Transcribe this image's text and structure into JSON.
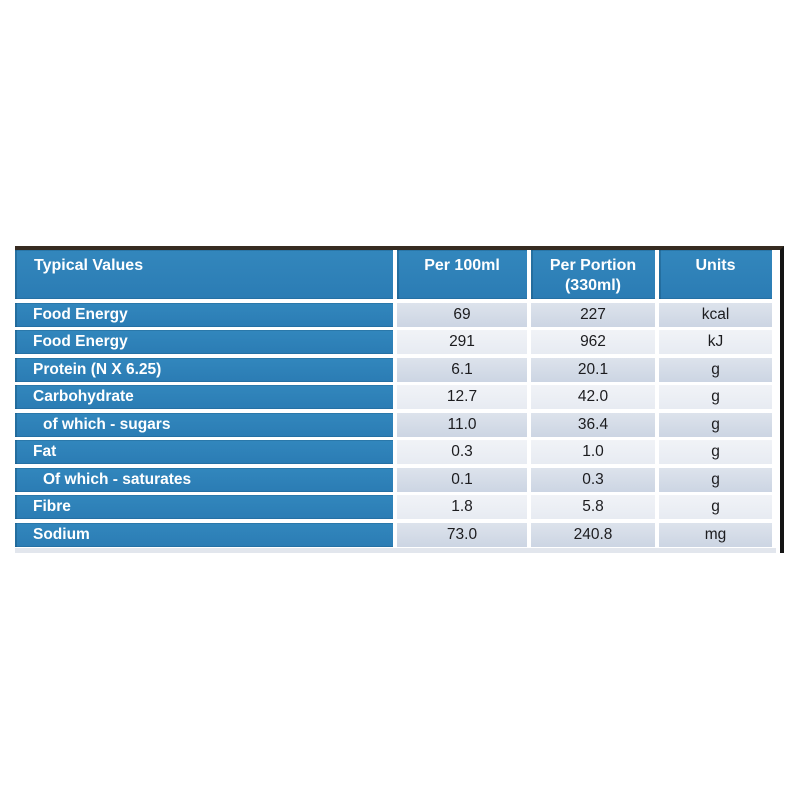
{
  "table": {
    "title": "nutrition-typical-values-table",
    "headers": [
      "Typical Values",
      "Per 100ml",
      "Per Portion\n(330ml)",
      "Units"
    ],
    "rows": [
      {
        "label": "Food Energy",
        "per_100ml": "69",
        "per_portion": "227",
        "units": "kcal",
        "indent": false
      },
      {
        "label": "Food Energy",
        "per_100ml": "291",
        "per_portion": "962",
        "units": "kJ",
        "indent": false
      },
      {
        "label": "Protein (N X 6.25)",
        "per_100ml": "6.1",
        "per_portion": "20.1",
        "units": "g",
        "indent": false
      },
      {
        "label": "Carbohydrate",
        "per_100ml": "12.7",
        "per_portion": "42.0",
        "units": "g",
        "indent": false
      },
      {
        "label": "of which - sugars",
        "per_100ml": "11.0",
        "per_portion": "36.4",
        "units": "g",
        "indent": true
      },
      {
        "label": "Fat",
        "per_100ml": "0.3",
        "per_portion": "1.0",
        "units": "g",
        "indent": false
      },
      {
        "label": "Of which - saturates",
        "per_100ml": "0.1",
        "per_portion": "0.3",
        "units": "g",
        "indent": true
      },
      {
        "label": "Fibre",
        "per_100ml": "1.8",
        "per_portion": "5.8",
        "units": "g",
        "indent": false
      },
      {
        "label": "Sodium",
        "per_100ml": "73.0",
        "per_portion": "240.8",
        "units": "mg",
        "indent": false
      }
    ],
    "colors": {
      "header_blue": "#2e80b9",
      "row_dark": "#ccd5e3",
      "row_light": "#e7ebf2",
      "top_border": "#362b21",
      "right_border": "#151515",
      "header_text": "#ffffff",
      "data_text": "#1c1c1f"
    }
  }
}
